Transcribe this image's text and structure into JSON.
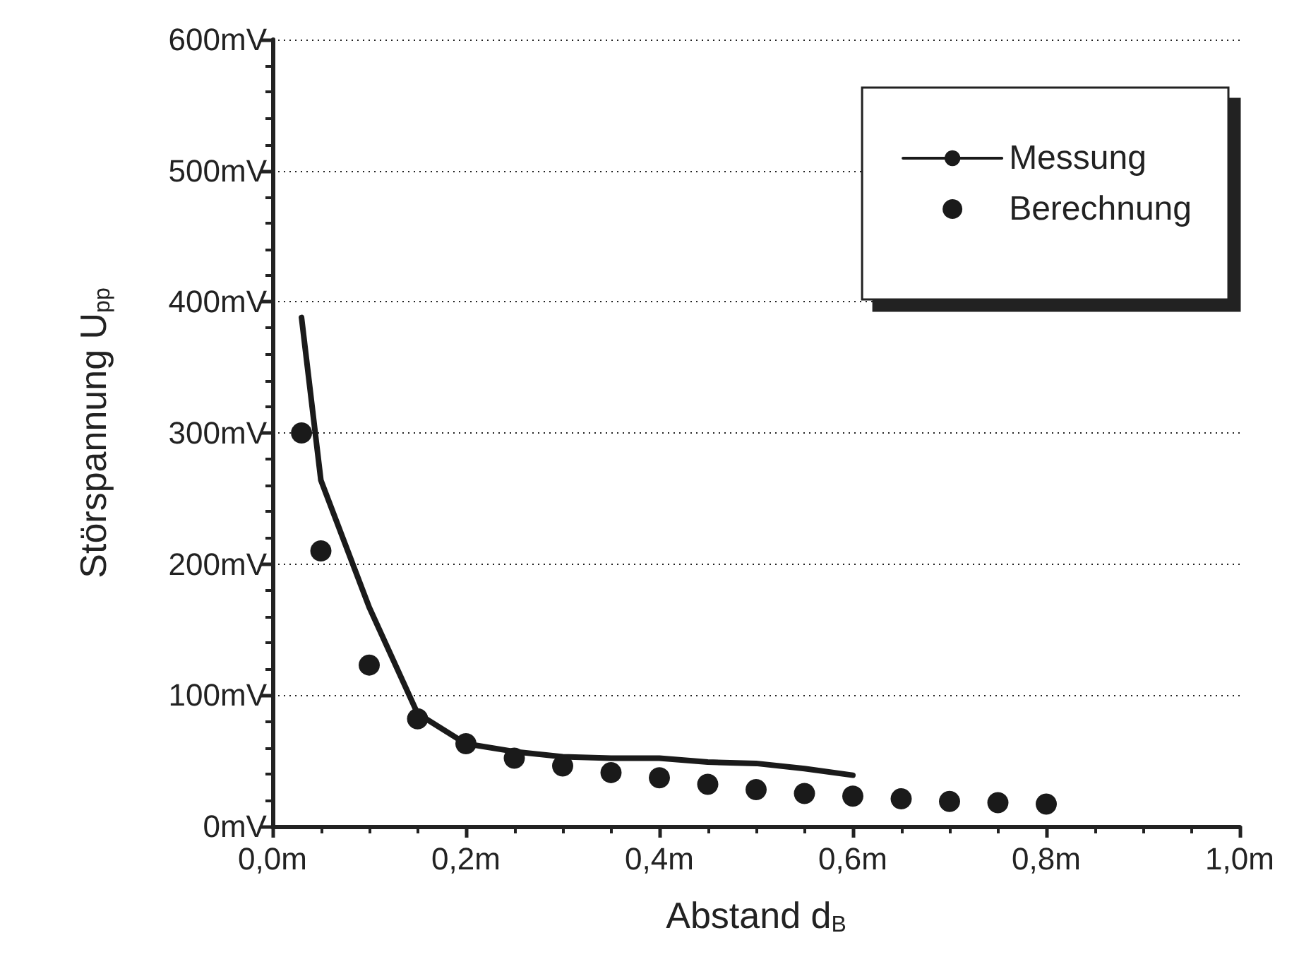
{
  "chart_data": {
    "type": "line",
    "xlabel": "Abstand d$_{B}$",
    "ylabel": "Störspannung U$_{pp}$",
    "xlim": [
      0,
      1
    ],
    "ylim": [
      0,
      600
    ],
    "xticks": [
      {
        "value": 0,
        "label": "0,0m"
      },
      {
        "value": 0.2,
        "label": "0,2m"
      },
      {
        "value": 0.4,
        "label": "0,4m"
      },
      {
        "value": 0.6,
        "label": "0,6m"
      },
      {
        "value": 0.8,
        "label": "0,8m"
      },
      {
        "value": 1,
        "label": "1,0m"
      }
    ],
    "yticks": [
      {
        "value": 0,
        "label": "0mV"
      },
      {
        "value": 100,
        "label": "100mV"
      },
      {
        "value": 200,
        "label": "200mV"
      },
      {
        "value": 300,
        "label": "300mV"
      },
      {
        "value": 400,
        "label": "400mV"
      },
      {
        "value": 500,
        "label": "500mV"
      },
      {
        "value": 600,
        "label": "600mV"
      }
    ],
    "grid": "y",
    "legend": "top right",
    "series": [
      {
        "name": "Messung",
        "type": "line",
        "color": "#1a1a1a",
        "marker": "none",
        "line_style": "solid",
        "x": [
          0.03,
          0.05,
          0.1,
          0.15,
          0.2,
          0.25,
          0.3,
          0.35,
          0.4,
          0.45,
          0.5,
          0.55,
          0.6
        ],
        "values": [
          388,
          264,
          167,
          86,
          63,
          57,
          53,
          52,
          52,
          49,
          48,
          44,
          39
        ]
      },
      {
        "name": "Berechnung",
        "type": "scatter",
        "color": "#1a1a1a",
        "marker": "circle",
        "x": [
          0.03,
          0.05,
          0.1,
          0.15,
          0.2,
          0.25,
          0.3,
          0.35,
          0.4,
          0.45,
          0.5,
          0.55,
          0.6,
          0.65,
          0.7,
          0.75,
          0.8
        ],
        "values": [
          300,
          210,
          123,
          82,
          63,
          52,
          46,
          41,
          37,
          32,
          28,
          25,
          23,
          21,
          19,
          18,
          17
        ]
      }
    ]
  }
}
